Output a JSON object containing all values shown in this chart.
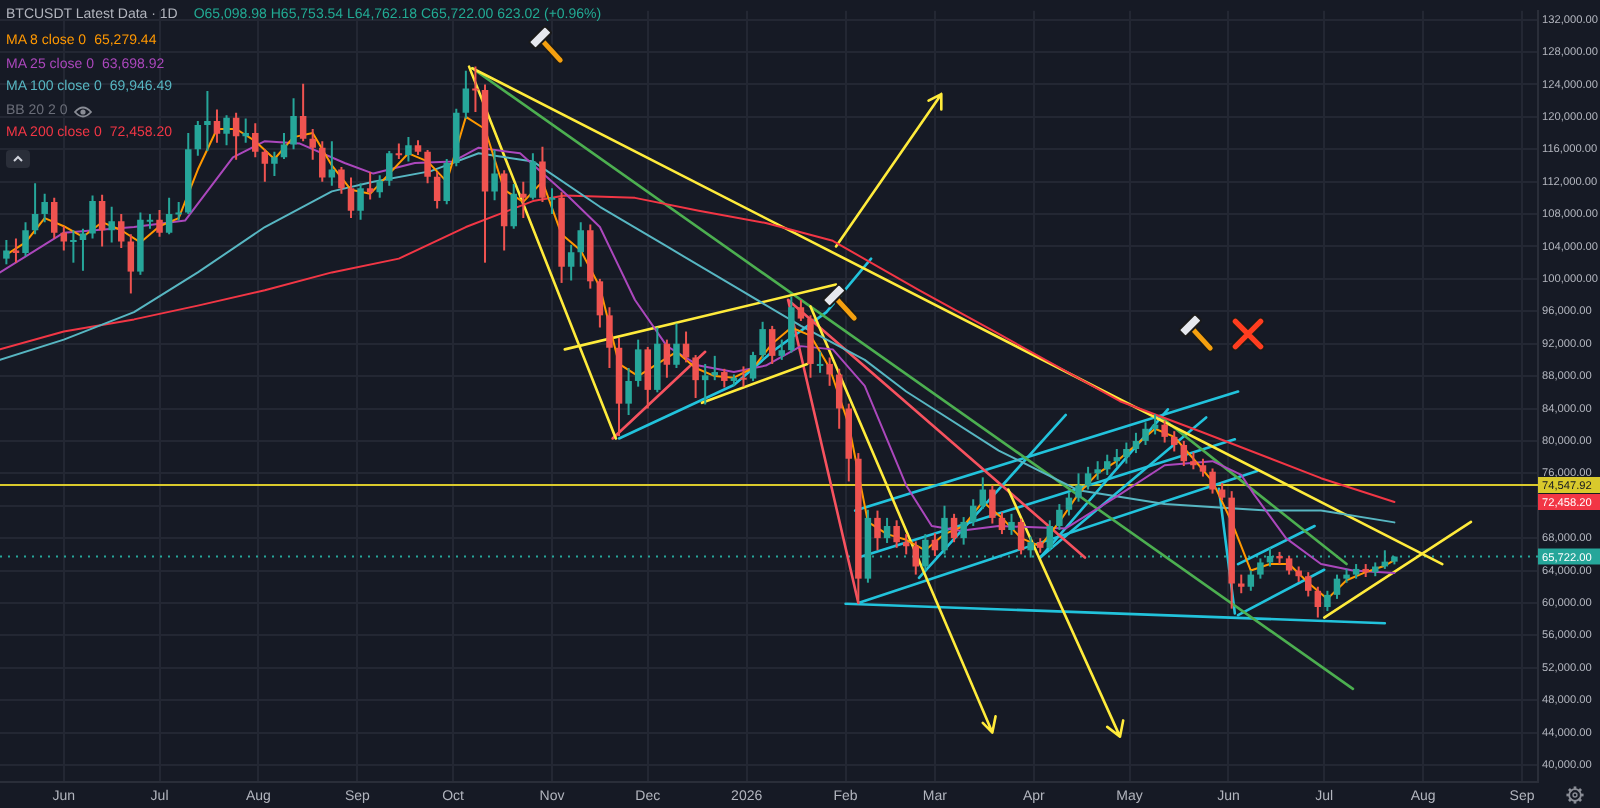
{
  "chart_data": {
    "type": "candlestick",
    "title": "BTCUSDT Latest Data · 1D",
    "subtitle": "O65,098.98 H65,753.54 L64,762.18 C65,722.00 623.02 (+0.96%)",
    "x": [
      "2025-05-14",
      "2025-05-17",
      "2025-05-20",
      "2025-05-23",
      "2025-05-26",
      "2025-05-29",
      "2025-06-01",
      "2025-06-04",
      "2025-06-07",
      "2025-06-10",
      "2025-06-13",
      "2025-06-16",
      "2025-06-19",
      "2025-06-22",
      "2025-06-25",
      "2025-06-28",
      "2025-07-01",
      "2025-07-04",
      "2025-07-07",
      "2025-07-10",
      "2025-07-13",
      "2025-07-16",
      "2025-07-19",
      "2025-07-22",
      "2025-07-25",
      "2025-07-28",
      "2025-07-31",
      "2025-08-03",
      "2025-08-06",
      "2025-08-09",
      "2025-08-12",
      "2025-08-15",
      "2025-08-18",
      "2025-08-21",
      "2025-08-24",
      "2025-08-27",
      "2025-08-30",
      "2025-09-02",
      "2025-09-05",
      "2025-09-08",
      "2025-09-11",
      "2025-09-14",
      "2025-09-17",
      "2025-09-20",
      "2025-09-23",
      "2025-09-26",
      "2025-09-29",
      "2025-10-02",
      "2025-10-05",
      "2025-10-08",
      "2025-10-11",
      "2025-10-14",
      "2025-10-17",
      "2025-10-20",
      "2025-10-23",
      "2025-10-26",
      "2025-10-29",
      "2025-11-01",
      "2025-11-04",
      "2025-11-07",
      "2025-11-10",
      "2025-11-13",
      "2025-11-16",
      "2025-11-19",
      "2025-11-22",
      "2025-11-25",
      "2025-11-28",
      "2025-12-01",
      "2025-12-04",
      "2025-12-07",
      "2025-12-10",
      "2025-12-13",
      "2025-12-16",
      "2025-12-19",
      "2025-12-22",
      "2025-12-25",
      "2025-12-28",
      "2025-12-31",
      "2026-01-03",
      "2026-01-06",
      "2026-01-09",
      "2026-01-12",
      "2026-01-15",
      "2026-01-18",
      "2026-01-21",
      "2026-01-24",
      "2026-01-27",
      "2026-01-30",
      "2026-02-02",
      "2026-02-05",
      "2026-02-08",
      "2026-02-11",
      "2026-02-14",
      "2026-02-17",
      "2026-02-20",
      "2026-02-23",
      "2026-02-26",
      "2026-03-01",
      "2026-03-04",
      "2026-03-07",
      "2026-03-10",
      "2026-03-13",
      "2026-03-16",
      "2026-03-19",
      "2026-03-22",
      "2026-03-25",
      "2026-03-28",
      "2026-03-31",
      "2026-04-03",
      "2026-04-06",
      "2026-04-09",
      "2026-04-12",
      "2026-04-15",
      "2026-04-18",
      "2026-04-21",
      "2026-04-24",
      "2026-04-27",
      "2026-04-30",
      "2026-05-03",
      "2026-05-06",
      "2026-05-09",
      "2026-05-12",
      "2026-05-15",
      "2026-05-18",
      "2026-05-21",
      "2026-05-24",
      "2026-05-27",
      "2026-05-30",
      "2026-06-02",
      "2026-06-05",
      "2026-06-08",
      "2026-06-11",
      "2026-06-14",
      "2026-06-17",
      "2026-06-20",
      "2026-06-23",
      "2026-06-26",
      "2026-06-29",
      "2026-07-02",
      "2026-07-05",
      "2026-07-08",
      "2026-07-11",
      "2026-07-14",
      "2026-07-17",
      "2026-07-20",
      "2026-07-23"
    ],
    "ohlc": [
      [
        102500,
        104800,
        101800,
        103500
      ],
      [
        103500,
        105000,
        102000,
        103200
      ],
      [
        103200,
        107000,
        102800,
        106000
      ],
      [
        106000,
        111800,
        105500,
        108000
      ],
      [
        108000,
        110500,
        107000,
        109500
      ],
      [
        109500,
        110000,
        105000,
        105700
      ],
      [
        105700,
        106500,
        103500,
        104600
      ],
      [
        104600,
        106000,
        102000,
        104800
      ],
      [
        104800,
        106200,
        101000,
        105600
      ],
      [
        105600,
        110300,
        105000,
        109600
      ],
      [
        109600,
        110400,
        104000,
        106000
      ],
      [
        106000,
        108900,
        104500,
        107100
      ],
      [
        107100,
        108000,
        103800,
        104600
      ],
      [
        104600,
        105500,
        98200,
        100900
      ],
      [
        100900,
        108200,
        100500,
        107300
      ],
      [
        107300,
        108000,
        106200,
        107300
      ],
      [
        107300,
        108500,
        105200,
        105700
      ],
      [
        105700,
        110000,
        105500,
        108000
      ],
      [
        108000,
        109500,
        107200,
        108200
      ],
      [
        108200,
        118000,
        108000,
        116000
      ],
      [
        116000,
        119500,
        115200,
        119000
      ],
      [
        119000,
        123200,
        115800,
        119500
      ],
      [
        119500,
        120900,
        116800,
        117900
      ],
      [
        117900,
        120200,
        116500,
        119900
      ],
      [
        119900,
        120500,
        114700,
        117600
      ],
      [
        117600,
        119800,
        116800,
        118000
      ],
      [
        118000,
        119200,
        115000,
        115700
      ],
      [
        115700,
        116000,
        112000,
        114200
      ],
      [
        114200,
        115700,
        112700,
        115000
      ],
      [
        115000,
        118000,
        114800,
        116600
      ],
      [
        116600,
        122300,
        116000,
        120100
      ],
      [
        120100,
        124100,
        117000,
        117300
      ],
      [
        117300,
        118500,
        114700,
        116200
      ],
      [
        116200,
        117000,
        112000,
        112500
      ],
      [
        112500,
        117000,
        111500,
        113500
      ],
      [
        113500,
        113800,
        110500,
        111200
      ],
      [
        111200,
        112500,
        107500,
        108400
      ],
      [
        108400,
        111800,
        107300,
        111200
      ],
      [
        111200,
        113200,
        109800,
        110700
      ],
      [
        110700,
        112800,
        110000,
        112100
      ],
      [
        112100,
        115800,
        111500,
        115500
      ],
      [
        115500,
        116700,
        114800,
        115300
      ],
      [
        115300,
        117500,
        114500,
        116500
      ],
      [
        116500,
        117100,
        115300,
        115700
      ],
      [
        115700,
        115900,
        111800,
        112600
      ],
      [
        112600,
        113200,
        108700,
        109600
      ],
      [
        109600,
        114800,
        109200,
        114300
      ],
      [
        114300,
        121000,
        113900,
        120500
      ],
      [
        120500,
        125700,
        119800,
        123500
      ],
      [
        123500,
        126200,
        120600,
        123300
      ],
      [
        123300,
        124000,
        102000,
        110800
      ],
      [
        110800,
        115900,
        109700,
        113000
      ],
      [
        113000,
        113400,
        103500,
        106500
      ],
      [
        106500,
        111700,
        106200,
        110500
      ],
      [
        110500,
        112000,
        107500,
        110000
      ],
      [
        110000,
        115500,
        109800,
        114500
      ],
      [
        114500,
        116300,
        109500,
        110000
      ],
      [
        110000,
        111200,
        108000,
        110000
      ],
      [
        110000,
        110700,
        99500,
        101500
      ],
      [
        101500,
        104200,
        99800,
        103300
      ],
      [
        103300,
        107000,
        101500,
        106000
      ],
      [
        106000,
        106700,
        98800,
        99700
      ],
      [
        99700,
        100000,
        94000,
        95500
      ],
      [
        95500,
        96500,
        89000,
        91500
      ],
      [
        91500,
        92700,
        80600,
        84600
      ],
      [
        84600,
        89000,
        83200,
        87400
      ],
      [
        87400,
        92500,
        86700,
        91300
      ],
      [
        91300,
        91600,
        84000,
        86300
      ],
      [
        86300,
        94000,
        86000,
        92000
      ],
      [
        92000,
        92500,
        87800,
        89400
      ],
      [
        89400,
        94500,
        89000,
        92000
      ],
      [
        92000,
        93500,
        89700,
        90300
      ],
      [
        90300,
        90600,
        85300,
        87500
      ],
      [
        87500,
        89500,
        84500,
        88100
      ],
      [
        88100,
        90500,
        87500,
        88500
      ],
      [
        88500,
        88900,
        86600,
        87400
      ],
      [
        87400,
        88200,
        86800,
        87800
      ],
      [
        87800,
        89200,
        86700,
        87700
      ],
      [
        87700,
        91000,
        87400,
        90600
      ],
      [
        90600,
        94700,
        90200,
        93800
      ],
      [
        93800,
        94200,
        89500,
        90500
      ],
      [
        90500,
        92500,
        90000,
        91200
      ],
      [
        91200,
        97800,
        90900,
        96500
      ],
      [
        96500,
        97400,
        94800,
        95100
      ],
      [
        95100,
        95500,
        87800,
        89500
      ],
      [
        89500,
        91000,
        88400,
        89500
      ],
      [
        89500,
        90300,
        86800,
        88200
      ],
      [
        88200,
        88900,
        81500,
        84000
      ],
      [
        84000,
        84600,
        75000,
        77800
      ],
      [
        77800,
        78500,
        60000,
        63000
      ],
      [
        63000,
        71500,
        62500,
        70500
      ],
      [
        70500,
        71400,
        66500,
        68000
      ],
      [
        68000,
        70500,
        67400,
        69500
      ],
      [
        69500,
        70200,
        66800,
        67500
      ],
      [
        67500,
        68500,
        66000,
        67000
      ],
      [
        67000,
        67600,
        63500,
        64500
      ],
      [
        64500,
        68500,
        64000,
        67800
      ],
      [
        67800,
        68600,
        65800,
        66500
      ],
      [
        66500,
        72000,
        66000,
        70500
      ],
      [
        70500,
        71000,
        67500,
        68000
      ],
      [
        68000,
        70600,
        67200,
        70000
      ],
      [
        70000,
        72800,
        69500,
        72000
      ],
      [
        72000,
        75500,
        71600,
        74000
      ],
      [
        74000,
        74500,
        69800,
        70500
      ],
      [
        70500,
        71200,
        68500,
        69000
      ],
      [
        69000,
        71000,
        68400,
        70000
      ],
      [
        70000,
        70400,
        66000,
        66500
      ],
      [
        66500,
        68200,
        65600,
        67500
      ],
      [
        67500,
        68000,
        66200,
        66800
      ],
      [
        66800,
        70200,
        66500,
        69500
      ],
      [
        69500,
        72200,
        69000,
        71500
      ],
      [
        71500,
        73600,
        70800,
        73000
      ],
      [
        73000,
        76000,
        72500,
        74500
      ],
      [
        74500,
        76800,
        74000,
        76000
      ],
      [
        76000,
        77500,
        75200,
        76500
      ],
      [
        76500,
        78300,
        75800,
        77500
      ],
      [
        77500,
        79000,
        76800,
        78000
      ],
      [
        78000,
        79800,
        77200,
        79000
      ],
      [
        79000,
        81000,
        78500,
        80000
      ],
      [
        80000,
        82300,
        79500,
        81500
      ],
      [
        81500,
        83300,
        80800,
        82000
      ],
      [
        82000,
        82500,
        79800,
        80500
      ],
      [
        80500,
        81200,
        78700,
        79500
      ],
      [
        79500,
        80000,
        76900,
        77500
      ],
      [
        77500,
        78600,
        76500,
        77000
      ],
      [
        77000,
        77800,
        75600,
        76200
      ],
      [
        76200,
        76600,
        73500,
        74000
      ],
      [
        74000,
        74800,
        72700,
        73000
      ],
      [
        73000,
        73800,
        59300,
        62400
      ],
      [
        62400,
        63500,
        61200,
        62000
      ],
      [
        62000,
        64000,
        61500,
        63500
      ],
      [
        63500,
        65500,
        63000,
        65000
      ],
      [
        65000,
        66800,
        64500,
        65800
      ],
      [
        65800,
        66300,
        64800,
        65500
      ],
      [
        65500,
        65800,
        63500,
        64000
      ],
      [
        64000,
        64500,
        62600,
        63300
      ],
      [
        63300,
        63800,
        60800,
        61500
      ],
      [
        61500,
        62000,
        58200,
        59500
      ],
      [
        59500,
        61500,
        59000,
        61000
      ],
      [
        61000,
        63500,
        60500,
        63000
      ],
      [
        63000,
        64200,
        62500,
        63500
      ],
      [
        63500,
        64800,
        63000,
        64200
      ],
      [
        64200,
        64800,
        63200,
        63800
      ],
      [
        63800,
        65000,
        63300,
        64500
      ],
      [
        64500,
        66500,
        64200,
        65100
      ],
      [
        65098.98,
        65753.54,
        64762.18,
        65722.0
      ]
    ],
    "series": [
      {
        "name": "MA 8 close 0",
        "type": "line",
        "color": "#ff9800",
        "x": [
          "2025-05-14",
          "2025-05-20",
          "2025-05-26",
          "2025-06-01",
          "2025-06-07",
          "2025-06-13",
          "2025-06-19",
          "2025-06-25",
          "2025-07-01",
          "2025-07-07",
          "2025-07-13",
          "2025-07-19",
          "2025-07-25",
          "2025-07-31",
          "2025-08-06",
          "2025-08-12",
          "2025-08-18",
          "2025-08-24",
          "2025-08-30",
          "2025-09-05",
          "2025-09-11",
          "2025-09-17",
          "2025-09-23",
          "2025-09-29",
          "2025-10-05",
          "2025-10-11",
          "2025-10-17",
          "2025-10-23",
          "2025-10-29",
          "2025-11-04",
          "2025-11-10",
          "2025-11-16",
          "2025-11-22",
          "2025-11-28",
          "2025-12-04",
          "2025-12-10",
          "2025-12-16",
          "2025-12-22",
          "2025-12-28",
          "2026-01-03",
          "2026-01-09",
          "2026-01-15",
          "2026-01-21",
          "2026-01-27",
          "2026-02-02",
          "2026-02-08",
          "2026-02-14",
          "2026-02-20",
          "2026-02-26",
          "2026-03-04",
          "2026-03-10",
          "2026-03-16",
          "2026-03-22",
          "2026-03-28",
          "2026-04-03",
          "2026-04-09",
          "2026-04-15",
          "2026-04-21",
          "2026-04-27",
          "2026-05-03",
          "2026-05-09",
          "2026-05-15",
          "2026-05-21",
          "2026-05-27",
          "2026-06-02",
          "2026-06-08",
          "2026-06-14",
          "2026-06-20",
          "2026-06-26",
          "2026-07-02",
          "2026-07-08",
          "2026-07-14",
          "2026-07-20",
          "2026-07-23"
        ],
        "values": [
          103000,
          104500,
          107500,
          106500,
          105200,
          107000,
          106000,
          104500,
          106500,
          107500,
          113500,
          118500,
          118500,
          117000,
          114800,
          117500,
          118000,
          114000,
          111000,
          110500,
          113000,
          115500,
          114500,
          112000,
          120000,
          118500,
          111000,
          109500,
          112000,
          105500,
          103500,
          99000,
          89500,
          88000,
          89500,
          91000,
          89000,
          88000,
          87800,
          89000,
          92000,
          94000,
          93000,
          89000,
          82000,
          70000,
          68500,
          67800,
          66500,
          68500,
          69500,
          72500,
          70500,
          68000,
          67000,
          70000,
          73500,
          76000,
          77500,
          79500,
          81500,
          80500,
          77800,
          75000,
          70000,
          64000,
          64800,
          64800,
          62500,
          60500,
          62800,
          63800,
          64600,
          65279.44
        ]
      },
      {
        "name": "MA 25 close 0",
        "type": "line",
        "color": "#ab47bc",
        "x": [
          "2025-05-12",
          "2025-06-01",
          "2025-06-23",
          "2025-07-09",
          "2025-07-24",
          "2025-08-03",
          "2025-08-14",
          "2025-08-28",
          "2025-09-06",
          "2025-09-19",
          "2025-10-01",
          "2025-10-09",
          "2025-10-22",
          "2025-11-05",
          "2025-11-16",
          "2025-11-27",
          "2025-12-07",
          "2025-12-17",
          "2025-12-28",
          "2026-01-07",
          "2026-01-18",
          "2026-01-28",
          "2026-02-07",
          "2026-02-20",
          "2026-02-28",
          "2026-03-09",
          "2026-03-21",
          "2026-04-11",
          "2026-04-28",
          "2026-05-12",
          "2026-05-27",
          "2026-06-05",
          "2026-06-09",
          "2026-06-19",
          "2026-06-30",
          "2026-07-10",
          "2026-07-23"
        ],
        "values": [
          100800,
          105700,
          106400,
          107200,
          115000,
          117000,
          116700,
          114300,
          113000,
          114300,
          114500,
          116200,
          115500,
          110600,
          106400,
          97400,
          91700,
          89300,
          88500,
          89300,
          91700,
          91300,
          86800,
          74500,
          69500,
          68900,
          69500,
          69200,
          73400,
          77000,
          77500,
          75800,
          73400,
          68000,
          64800,
          64000,
          63698.92
        ]
      },
      {
        "name": "MA 100 close 0",
        "type": "line",
        "color": "#57b6c2",
        "x": [
          "2025-05-12",
          "2025-06-01",
          "2025-06-23",
          "2025-07-13",
          "2025-08-03",
          "2025-08-24",
          "2025-09-06",
          "2025-09-24",
          "2025-10-09",
          "2025-10-26",
          "2025-11-16",
          "2025-12-07",
          "2025-12-28",
          "2026-01-18",
          "2026-02-07",
          "2026-02-20",
          "2026-03-21",
          "2026-04-15",
          "2026-05-12",
          "2026-06-13",
          "2026-06-30",
          "2026-07-23"
        ],
        "values": [
          90000,
          92500,
          95900,
          100800,
          106400,
          110800,
          112000,
          113300,
          115500,
          114500,
          108900,
          104000,
          99100,
          94200,
          90000,
          86100,
          78800,
          73900,
          72200,
          71400,
          71400,
          69946.49
        ]
      },
      {
        "name": "MA 200 close 0",
        "type": "line",
        "color": "#f23645",
        "x": [
          "2025-05-12",
          "2025-06-01",
          "2025-06-23",
          "2025-07-13",
          "2025-08-03",
          "2025-08-24",
          "2025-09-14",
          "2025-10-05",
          "2025-10-26",
          "2025-11-05",
          "2025-11-27",
          "2025-12-17",
          "2026-01-07",
          "2026-01-28",
          "2026-02-24",
          "2026-03-21",
          "2026-04-28",
          "2026-05-23",
          "2026-06-30",
          "2026-07-23"
        ],
        "values": [
          91300,
          93500,
          95000,
          96700,
          98600,
          100800,
          102500,
          106400,
          109600,
          110300,
          110000,
          108400,
          106900,
          104700,
          98600,
          93200,
          84900,
          81200,
          75400,
          72458.2
        ]
      },
      {
        "type": "line",
        "color": "#ffeb3b",
        "x": [
          "2025-10-06",
          "2025-11-21"
        ],
        "values": [
          126200,
          80300
        ]
      },
      {
        "type": "line",
        "color": "#ffeb3b",
        "x": [
          "2025-10-07",
          "2026-08-07"
        ],
        "values": [
          126000,
          64800
        ]
      },
      {
        "type": "line",
        "color": "#ffeb3b",
        "x": [
          "2025-11-05",
          "2026-01-29"
        ],
        "values": [
          91300,
          99300
        ]
      },
      {
        "type": "line",
        "color": "#ffeb3b",
        "x": [
          "2025-12-18",
          "2026-01-20"
        ],
        "values": [
          84700,
          89500
        ]
      },
      {
        "type": "line",
        "color": "#ffeb3b",
        "x": [
          "2026-01-29",
          "2026-03-03",
          "2026-02-27",
          "2026-03-03",
          "2026-03-03"
        ],
        "values": [
          104000,
          122800,
          122000,
          122800,
          120900
        ]
      },
      {
        "type": "line",
        "color": "#ffeb3b",
        "x": [
          "2026-01-21",
          "2026-03-19",
          "2026-03-20",
          "2026-03-19",
          "2026-03-16"
        ],
        "values": [
          96600,
          44000,
          46000,
          44000,
          45200
        ]
      },
      {
        "type": "line",
        "color": "#ffeb3b",
        "x": [
          "2026-03-24",
          "2026-04-28",
          "2026-04-29",
          "2026-04-28",
          "2026-04-24"
        ],
        "values": [
          74000,
          43500,
          45500,
          43500,
          44700
        ]
      },
      {
        "type": "line",
        "color": "#ffeb3b",
        "x": [
          "2026-07-01",
          "2026-08-16"
        ],
        "values": [
          58200,
          70000
        ]
      },
      {
        "type": "line",
        "color": "#4caf50",
        "x": [
          "2025-10-07",
          "2026-07-10"
        ],
        "values": [
          126000,
          49400
        ]
      },
      {
        "type": "line",
        "color": "#4caf50",
        "x": [
          "2026-05-11",
          "2026-07-08"
        ],
        "values": [
          82900,
          64800
        ]
      },
      {
        "type": "line",
        "color": "#f7525f",
        "x": [
          "2026-01-14",
          "2026-02-05"
        ],
        "values": [
          97400,
          60000
        ]
      },
      {
        "type": "line",
        "color": "#f7525f",
        "x": [
          "2026-01-14",
          "2026-04-17"
        ],
        "values": [
          97400,
          65600
        ]
      },
      {
        "type": "line",
        "color": "#f7525f",
        "x": [
          "2025-11-20",
          "2025-12-19"
        ],
        "values": [
          80300,
          91000
        ]
      },
      {
        "type": "line",
        "color": "#22c3dc",
        "x": [
          "2025-11-22",
          "2025-12-28",
          "2026-01-09",
          "2026-01-26",
          "2026-02-09"
        ],
        "values": [
          80300,
          86900,
          91000,
          95900,
          102500
        ]
      },
      {
        "type": "line",
        "color": "#22c3dc",
        "x": [
          "2026-02-01",
          "2026-07-20"
        ],
        "values": [
          59900,
          57500
        ]
      },
      {
        "type": "line",
        "color": "#22c3dc",
        "x": [
          "2026-02-04",
          "2026-06-04"
        ],
        "values": [
          71400,
          86100
        ]
      },
      {
        "type": "line",
        "color": "#22c3dc",
        "x": [
          "2026-02-05",
          "2026-06-03"
        ],
        "values": [
          65600,
          80200
        ]
      },
      {
        "type": "line",
        "color": "#22c3dc",
        "x": [
          "2026-02-05",
          "2026-06-10"
        ],
        "values": [
          60000,
          76300
        ]
      },
      {
        "type": "line",
        "color": "#22c3dc",
        "x": [
          "2026-02-24",
          "2026-04-11"
        ],
        "values": [
          63100,
          83200
        ]
      },
      {
        "type": "line",
        "color": "#22c3dc",
        "x": [
          "2026-04-03",
          "2026-05-25"
        ],
        "values": [
          65600,
          82900
        ]
      },
      {
        "type": "line",
        "color": "#22c3dc",
        "x": [
          "2026-04-03",
          "2026-05-13"
        ],
        "values": [
          65600,
          83900
        ]
      },
      {
        "type": "line",
        "color": "#22c3dc",
        "x": [
          "2026-05-29",
          "2026-06-03"
        ],
        "values": [
          74100,
          58700
        ]
      },
      {
        "type": "line",
        "color": "#22c3dc",
        "x": [
          "2026-06-04",
          "2026-06-28"
        ],
        "values": [
          64800,
          69500
        ]
      },
      {
        "type": "line",
        "color": "#22c3dc",
        "x": [
          "2026-06-04",
          "2026-07-01"
        ],
        "values": [
          58500,
          64100
        ]
      }
    ],
    "xlim": [
      "2025-05-12",
      "2026-09-06"
    ],
    "xticks": [
      {
        "value": "2025-06-01",
        "label": "Jun"
      },
      {
        "value": "2025-07-01",
        "label": "Jul"
      },
      {
        "value": "2025-08-01",
        "label": "Aug"
      },
      {
        "value": "2025-09-01",
        "label": "Sep"
      },
      {
        "value": "2025-10-01",
        "label": "Oct"
      },
      {
        "value": "2025-11-01",
        "label": "Nov"
      },
      {
        "value": "2025-12-01",
        "label": "Dec"
      },
      {
        "value": "2026-01-01",
        "label": "2026"
      },
      {
        "value": "2026-02-01",
        "label": "Feb"
      },
      {
        "value": "2026-03-01",
        "label": "Mar"
      },
      {
        "value": "2026-04-01",
        "label": "Apr"
      },
      {
        "value": "2026-05-01",
        "label": "May"
      },
      {
        "value": "2026-06-01",
        "label": "Jun"
      },
      {
        "value": "2026-07-01",
        "label": "Jul"
      },
      {
        "value": "2026-08-01",
        "label": "Aug"
      },
      {
        "value": "2026-09-01",
        "label": "Sep"
      }
    ],
    "ylim": [
      37900,
      133100
    ],
    "yticks": [
      {
        "value": 40000,
        "label": "40,000.00"
      },
      {
        "value": 44000,
        "label": "44,000.00"
      },
      {
        "value": 48000,
        "label": "48,000.00"
      },
      {
        "value": 52000,
        "label": "52,000.00"
      },
      {
        "value": 56000,
        "label": "56,000.00"
      },
      {
        "value": 60000,
        "label": "60,000.00"
      },
      {
        "value": 64000,
        "label": "64,000.00"
      },
      {
        "value": 68000,
        "label": "68,000.00"
      },
      {
        "value": 72000,
        "label": null
      },
      {
        "value": 76000,
        "label": "76,000.00"
      },
      {
        "value": 80000,
        "label": "80,000.00"
      },
      {
        "value": 84000,
        "label": "84,000.00"
      },
      {
        "value": 88000,
        "label": "88,000.00"
      },
      {
        "value": 92000,
        "label": "92,000.00"
      },
      {
        "value": 96000,
        "label": "96,000.00"
      },
      {
        "value": 100000,
        "label": "100,000.00"
      },
      {
        "value": 104000,
        "label": "104,000.00"
      },
      {
        "value": 108000,
        "label": "108,000.00"
      },
      {
        "value": 112000,
        "label": "112,000.00"
      },
      {
        "value": 116000,
        "label": "116,000.00"
      },
      {
        "value": 120000,
        "label": "120,000.00"
      },
      {
        "value": 124000,
        "label": "124,000.00"
      },
      {
        "value": 128000,
        "label": "128,000.00"
      },
      {
        "value": 132000,
        "label": "132,000.00"
      }
    ],
    "ref_lines": [
      {
        "axis": "y",
        "value": 74547.92,
        "label": "74,547.92",
        "color": "#d9c92c"
      },
      {
        "axis": "y",
        "value": 65722,
        "label": "65,722.00",
        "color": "#26a69a",
        "line_style": "dotted"
      }
    ],
    "annotations": [
      "65,279.44",
      "63,698.92",
      "69,946.49",
      "72,458.20",
      "BB 20 2 0",
      "72,458.20"
    ],
    "grid": true,
    "legend": "top left"
  }
}
